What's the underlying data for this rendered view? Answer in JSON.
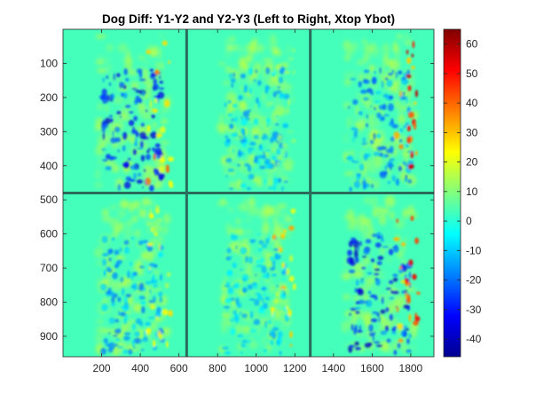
{
  "chart_data": {
    "type": "heatmap",
    "title": "Dog Diff: Y1-Y2 and Y2-Y3 (Left to Right, Xtop Ybot)",
    "xlabel": "",
    "ylabel": "",
    "xlim": [
      0,
      1920
    ],
    "ylim": [
      960,
      0
    ],
    "x_ticks": [
      200,
      400,
      600,
      800,
      1000,
      1200,
      1400,
      1600,
      1800
    ],
    "y_ticks": [
      100,
      200,
      300,
      400,
      500,
      600,
      700,
      800,
      900
    ],
    "y_reversed": true,
    "grid": false,
    "colormap": "jet",
    "background_value": 3,
    "colorbar": {
      "clim": [
        -46,
        65
      ],
      "ticks": [
        60,
        50,
        40,
        30,
        20,
        10,
        0,
        -10,
        -20,
        -30,
        -40
      ],
      "placement": "right"
    },
    "panel_dividers": {
      "vertical_x": [
        640,
        1280
      ],
      "horizontal_y": [
        480
      ],
      "color": "#2a6b5c"
    },
    "panels": [
      {
        "row": 1,
        "col": 1,
        "x_range": [
          0,
          640
        ],
        "y_range": [
          0,
          480
        ],
        "min_value": -40,
        "max_value": 42
      },
      {
        "row": 1,
        "col": 2,
        "x_range": [
          640,
          1280
        ],
        "y_range": [
          0,
          480
        ],
        "min_value": -18,
        "max_value": 14
      },
      {
        "row": 1,
        "col": 3,
        "x_range": [
          1280,
          1920
        ],
        "y_range": [
          0,
          480
        ],
        "min_value": -25,
        "max_value": 60
      },
      {
        "row": 2,
        "col": 1,
        "x_range": [
          0,
          640
        ],
        "y_range": [
          480,
          960
        ],
        "min_value": -20,
        "max_value": 28
      },
      {
        "row": 2,
        "col": 2,
        "x_range": [
          640,
          1280
        ],
        "y_range": [
          480,
          960
        ],
        "min_value": -15,
        "max_value": 35
      },
      {
        "row": 2,
        "col": 3,
        "x_range": [
          1280,
          1920
        ],
        "y_range": [
          480,
          960
        ],
        "min_value": -42,
        "max_value": 55
      }
    ]
  }
}
